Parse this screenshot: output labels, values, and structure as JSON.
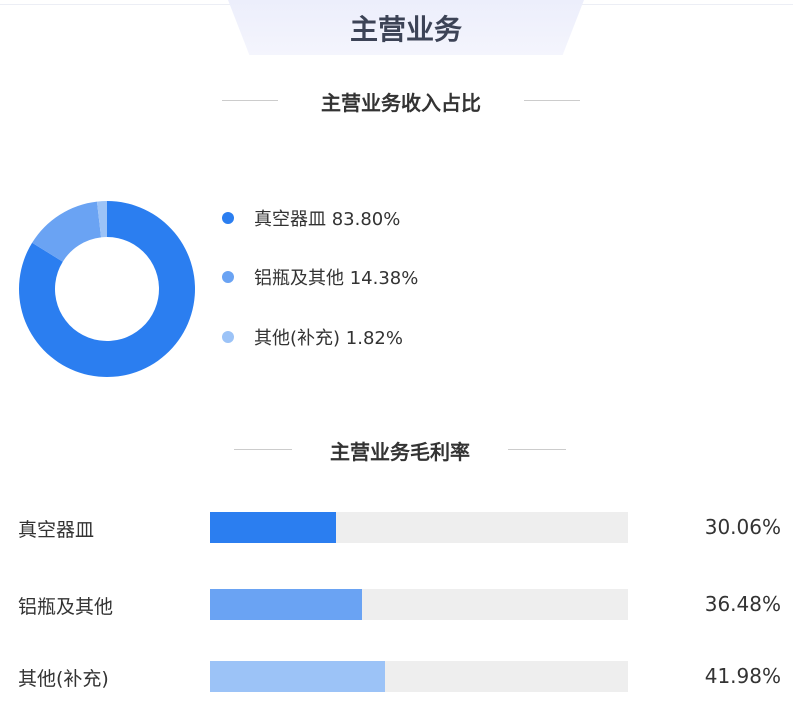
{
  "header": {
    "title": "主营业务"
  },
  "chart_data": [
    {
      "type": "pie",
      "title": "主营业务收入占比",
      "donut": true,
      "labels": [
        "真空器皿",
        "铝瓶及其他",
        "其他(补充)"
      ],
      "values": [
        83.8,
        14.38,
        1.82
      ],
      "value_labels": [
        "83.80%",
        "14.38%",
        "1.82%"
      ],
      "colors": [
        "#2b7ef0",
        "#6aa3f3",
        "#9cc3f7"
      ],
      "legend": "right"
    },
    {
      "type": "bar",
      "orientation": "horizontal",
      "title": "主营业务毛利率",
      "categories": [
        "真空器皿",
        "铝瓶及其他",
        "其他(补充)"
      ],
      "values": [
        30.06,
        36.48,
        41.98
      ],
      "value_labels": [
        "30.06%",
        "36.48%",
        "41.98%"
      ],
      "xlim": [
        0,
        100
      ],
      "colors": [
        "#2b7ef0",
        "#6aa3f3",
        "#9cc3f7"
      ],
      "track_color": "#eeeeee"
    }
  ]
}
